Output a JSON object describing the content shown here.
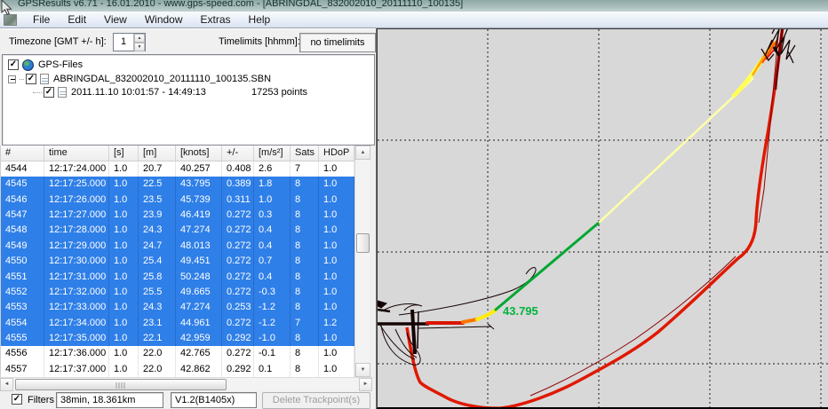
{
  "title_bar": {
    "title": "GPSResults v6.71 - 16.01.2010 - www.gps-speed.com - [ABRINGDAL_832002010_20111110_100135]"
  },
  "menu": {
    "items": [
      "File",
      "Edit",
      "View",
      "Window",
      "Extras",
      "Help"
    ]
  },
  "toolbar": {
    "timezone_label": "Timezone [GMT +/- h]:",
    "timezone_value": "1",
    "timelimits_label": "Timelimits [hhmm]:",
    "timelimits_value": "no timelimits"
  },
  "tree": {
    "root_label": "GPS-Files",
    "file_label": "ABRINGDAL_832002010_20111110_100135.SBN",
    "track_label": "2011.11.10 10:01:57 - 14:49:13",
    "track_points": "17253 points"
  },
  "table": {
    "columns": [
      "#",
      "time",
      "[s]",
      "[m]",
      "[knots]",
      "+/-",
      "[m/s²]",
      "Sats",
      "HDoP"
    ],
    "rows": [
      {
        "selected": false,
        "cells": [
          "4544",
          "12:17:24.000",
          "1.0",
          "20.7",
          "40.257",
          "0.408",
          "2.6",
          "7",
          "1.0"
        ]
      },
      {
        "selected": true,
        "cells": [
          "4545",
          "12:17:25.000",
          "1.0",
          "22.5",
          "43.795",
          "0.389",
          "1.8",
          "8",
          "1.0"
        ]
      },
      {
        "selected": true,
        "cells": [
          "4546",
          "12:17:26.000",
          "1.0",
          "23.5",
          "45.739",
          "0.311",
          "1.0",
          "8",
          "1.0"
        ]
      },
      {
        "selected": true,
        "cells": [
          "4547",
          "12:17:27.000",
          "1.0",
          "23.9",
          "46.419",
          "0.272",
          "0.3",
          "8",
          "1.0"
        ]
      },
      {
        "selected": true,
        "cells": [
          "4548",
          "12:17:28.000",
          "1.0",
          "24.3",
          "47.274",
          "0.272",
          "0.4",
          "8",
          "1.0"
        ]
      },
      {
        "selected": true,
        "cells": [
          "4549",
          "12:17:29.000",
          "1.0",
          "24.7",
          "48.013",
          "0.272",
          "0.4",
          "8",
          "1.0"
        ]
      },
      {
        "selected": true,
        "cells": [
          "4550",
          "12:17:30.000",
          "1.0",
          "25.4",
          "49.451",
          "0.272",
          "0.7",
          "8",
          "1.0"
        ]
      },
      {
        "selected": true,
        "cells": [
          "4551",
          "12:17:31.000",
          "1.0",
          "25.8",
          "50.248",
          "0.272",
          "0.4",
          "8",
          "1.0"
        ]
      },
      {
        "selected": true,
        "cells": [
          "4552",
          "12:17:32.000",
          "1.0",
          "25.5",
          "49.665",
          "0.272",
          "-0.3",
          "8",
          "1.0"
        ]
      },
      {
        "selected": true,
        "cells": [
          "4553",
          "12:17:33.000",
          "1.0",
          "24.3",
          "47.274",
          "0.253",
          "-1.2",
          "8",
          "1.0"
        ]
      },
      {
        "selected": true,
        "cells": [
          "4554",
          "12:17:34.000",
          "1.0",
          "23.1",
          "44.961",
          "0.272",
          "-1.2",
          "7",
          "1.2"
        ]
      },
      {
        "selected": true,
        "cells": [
          "4555",
          "12:17:35.000",
          "1.0",
          "22.1",
          "42.959",
          "0.292",
          "-1.0",
          "8",
          "1.0"
        ]
      },
      {
        "selected": false,
        "cells": [
          "4556",
          "12:17:36.000",
          "1.0",
          "22.0",
          "42.765",
          "0.272",
          "-0.1",
          "8",
          "1.0"
        ]
      },
      {
        "selected": false,
        "cells": [
          "4557",
          "12:17:37.000",
          "1.0",
          "22.0",
          "42.862",
          "0.292",
          "0.1",
          "8",
          "1.0"
        ]
      }
    ]
  },
  "footer": {
    "filters_label": "Filters",
    "filters_checked": true,
    "summary_value": "38min, 18.361km",
    "version_value": "V1.2(B1405x)",
    "delete_button_label": "Delete Trackpoint(s)"
  },
  "map": {
    "selected_speed_label": "43.795",
    "colors": {
      "background": "#d8d8d8",
      "selection_blue": "#2f7fe8",
      "track_red": "#e01800",
      "track_dark_red": "#6b0000",
      "track_orange": "#ff8800",
      "track_yellow": "#ffffa8",
      "track_green": "#00a832",
      "speed_label_green": "#00b33c"
    }
  }
}
